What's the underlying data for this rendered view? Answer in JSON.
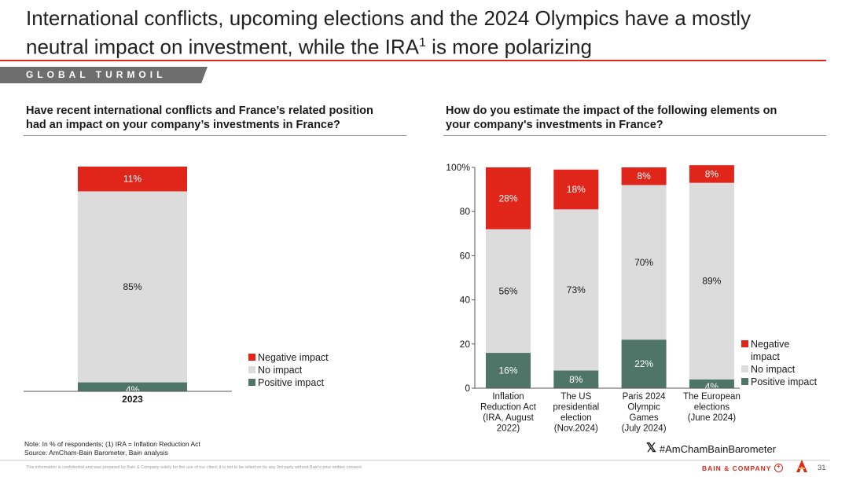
{
  "title": {
    "line1": "International conflicts, upcoming elections and the 2024 Olympics have a mostly",
    "line2_prefix": "neutral impact on investment, while the IRA",
    "line2_sup": "1",
    "line2_suffix": " is more polarizing"
  },
  "section_label": "GLOBAL TURMOIL",
  "colors": {
    "negative": "#e0261b",
    "no_impact": "#dcdcdc",
    "positive": "#4f7568",
    "accent": "#e0261b"
  },
  "left": {
    "question_line1": "Have recent international conflicts and France’s related position",
    "question_line2": "had an impact on your company’s investments in France?",
    "legend": {
      "negative": "Negative impact",
      "no_impact": "No impact",
      "positive": "Positive impact"
    }
  },
  "right": {
    "question_line1": "How do you estimate the impact of the following elements on",
    "question_line2": "your company's investments in France?",
    "legend": {
      "negative_line1": "Negative",
      "negative_line2": "impact",
      "no_impact": "No impact",
      "positive": "Positive impact"
    }
  },
  "chart_data": [
    {
      "type": "bar",
      "stacked": true,
      "categories": [
        "2023"
      ],
      "series": [
        {
          "name": "Positive impact",
          "values": [
            4
          ],
          "labels": [
            "4%"
          ]
        },
        {
          "name": "No impact",
          "values": [
            85
          ],
          "labels": [
            "85%"
          ]
        },
        {
          "name": "Negative impact",
          "values": [
            11
          ],
          "labels": [
            "11%"
          ]
        }
      ],
      "ylim": [
        0,
        100
      ],
      "y_axis_visible": false,
      "legend_position": "bottom-right",
      "grid": false
    },
    {
      "type": "bar",
      "stacked": true,
      "categories": [
        [
          "Inflation",
          "Reduction Act",
          "(IRA, August",
          "2022)"
        ],
        [
          "The US",
          "presidential",
          "election",
          "(Nov.2024)"
        ],
        [
          "Paris 2024",
          "Olympic",
          "Games",
          "(July 2024)"
        ],
        [
          "The European",
          "elections",
          "(June 2024)"
        ]
      ],
      "series": [
        {
          "name": "Positive impact",
          "values": [
            16,
            8,
            22,
            4
          ],
          "labels": [
            "16%",
            "8%",
            "22%",
            "4%"
          ]
        },
        {
          "name": "No impact",
          "values": [
            56,
            73,
            70,
            89
          ],
          "labels": [
            "56%",
            "73%",
            "70%",
            "89%"
          ]
        },
        {
          "name": "Negative impact",
          "values": [
            28,
            18,
            8,
            8
          ],
          "labels": [
            "28%",
            "18%",
            "8%",
            "8%"
          ]
        }
      ],
      "ylim": [
        0,
        100
      ],
      "yticks": [
        "0",
        "20",
        "40",
        "60",
        "80",
        "100%"
      ],
      "legend_position": "bottom-right",
      "grid": false
    }
  ],
  "footnote": {
    "note": "Note: In % of respondents; (1) IRA = Inflation Reduction Act",
    "source": "Source: AmCham-Bain Barometer, Bain analysis"
  },
  "footer": {
    "confidential": "This information is confidential and was prepared by Bain & Company solely for the use of our client; it is not to be relied on by any 3rd party without Bain's prior written consent",
    "hashtag": "#AmChamBainBarometer",
    "hashtag_icon": "x-logo-icon",
    "brand": "BAIN & COMPANY",
    "page_number": "31"
  }
}
